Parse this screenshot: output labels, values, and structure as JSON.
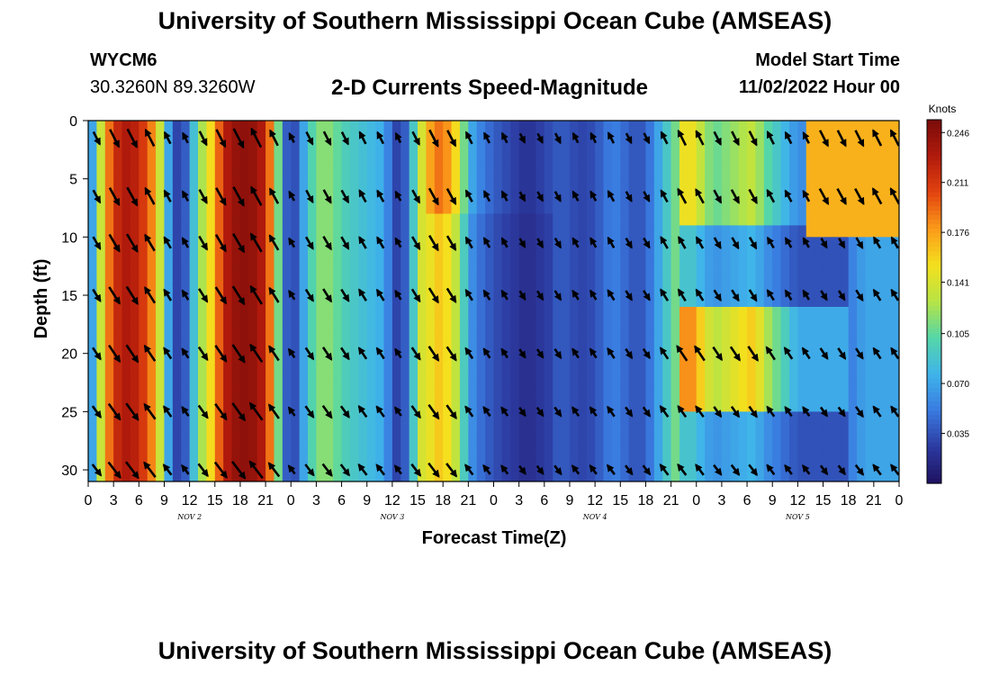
{
  "header": {
    "title": "University of Southern Mississippi Ocean Cube (AMSEAS)",
    "station_id": "WYCM6",
    "coords": "30.3260N  89.3260W",
    "subtitle": "2-D Currents Speed-Magnitude",
    "model_label": "Model Start Time",
    "model_date": "11/02/2022 Hour 00"
  },
  "footer": {
    "title": "University of Southern Mississippi Ocean Cube (AMSEAS)"
  },
  "colors": {
    "colormap": [
      "#1e1160",
      "#2c3aa0",
      "#3a7ae0",
      "#3fb4ea",
      "#55d6a8",
      "#b7e445",
      "#f4e01e",
      "#fb9a1a",
      "#e2430f",
      "#b01a0c",
      "#7a0c0a"
    ],
    "arrow": "#000000",
    "axis": "#000000"
  },
  "chart_data": {
    "type": "heatmap",
    "title": "2-D Currents Speed-Magnitude",
    "xlabel": "Forecast Time(Z)",
    "ylabel": "Depth (ft)",
    "x_ticks": [
      "0",
      "3",
      "6",
      "9",
      "12",
      "15",
      "18",
      "21",
      "0",
      "3",
      "6",
      "9",
      "12",
      "15",
      "18",
      "21",
      "0",
      "3",
      "6",
      "9",
      "12",
      "15",
      "18",
      "21",
      "0",
      "3",
      "6",
      "9",
      "12",
      "15",
      "18",
      "21",
      "0"
    ],
    "x_day_labels": [
      "NOV 2",
      "NOV 3",
      "NOV 4",
      "NOV 5"
    ],
    "y_ticks": [
      0,
      5,
      10,
      15,
      20,
      25,
      30
    ],
    "xlim_hours": [
      0,
      96
    ],
    "ylim_ft": [
      0,
      31
    ],
    "colorbar": {
      "label": "Knots",
      "ticks": [
        "0.246",
        "0.211",
        "0.176",
        "0.141",
        "0.105",
        "0.070",
        "0.035"
      ],
      "range": [
        0.0,
        0.255
      ]
    },
    "speed_profile": {
      "hours": [
        0,
        1,
        2,
        3,
        4,
        5,
        6,
        7,
        8,
        9,
        10,
        11,
        12,
        13,
        14,
        15,
        16,
        17,
        18,
        19,
        20,
        21,
        22,
        23,
        24,
        25,
        26,
        27,
        28,
        29,
        30,
        31,
        32,
        33,
        34,
        35,
        36,
        37,
        38,
        39,
        40,
        41,
        42,
        43,
        44,
        45,
        46,
        47,
        48,
        49,
        50,
        51,
        52,
        53,
        54,
        55,
        56,
        57,
        58,
        59,
        60,
        61,
        62,
        63,
        64,
        65,
        66,
        67,
        68,
        69,
        70,
        71,
        72,
        73,
        74,
        75,
        76,
        77,
        78,
        79,
        80,
        81,
        82,
        83,
        84,
        85,
        86,
        87,
        88,
        89,
        90,
        91,
        92,
        93,
        94,
        95,
        96
      ],
      "knots": [
        0.04,
        0.1,
        0.17,
        0.21,
        0.23,
        0.23,
        0.22,
        0.2,
        0.17,
        0.1,
        0.04,
        0.02,
        0.06,
        0.11,
        0.14,
        0.17,
        0.22,
        0.24,
        0.245,
        0.245,
        0.24,
        0.22,
        0.16,
        0.06,
        0.02,
        0.05,
        0.09,
        0.11,
        0.12,
        0.11,
        0.1,
        0.09,
        0.09,
        0.08,
        0.08,
        0.07,
        0.04,
        0.02,
        0.06,
        0.12,
        0.16,
        0.19,
        0.19,
        0.17,
        0.14,
        0.08,
        0.06,
        0.05,
        0.04,
        0.035,
        0.03,
        0.025,
        0.02,
        0.025,
        0.03,
        0.035,
        0.04,
        0.035,
        0.03,
        0.03,
        0.035,
        0.045,
        0.055,
        0.05,
        0.04,
        0.035,
        0.04,
        0.06,
        0.08,
        0.1,
        0.12,
        0.13,
        0.12,
        0.1,
        0.09,
        0.09,
        0.1,
        0.1,
        0.11,
        0.11,
        0.09,
        0.08,
        0.07,
        0.06,
        0.05,
        0.05,
        0.05,
        0.05,
        0.05,
        0.05,
        0.05,
        0.06,
        0.07,
        0.07,
        0.07,
        0.07,
        0.07
      ]
    },
    "arrow_depths_ft": [
      1.5,
      6.5,
      10.5,
      15,
      20,
      25,
      30
    ]
  }
}
